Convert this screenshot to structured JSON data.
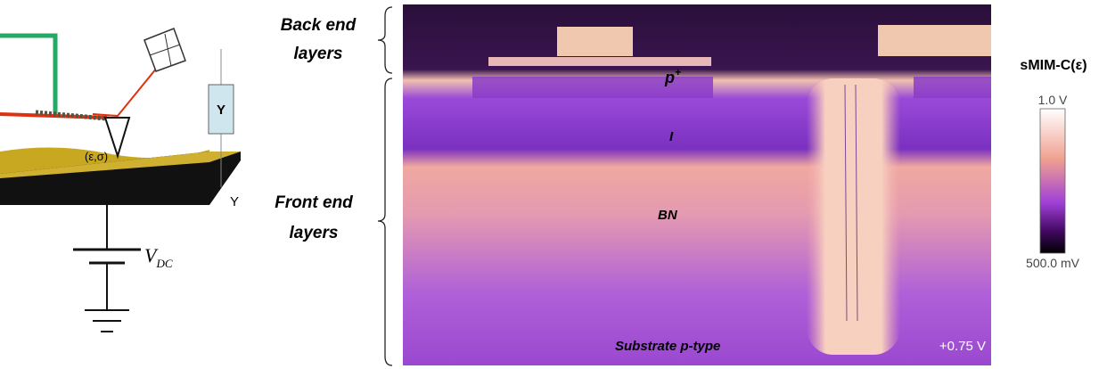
{
  "schematic": {
    "box_label": "Y",
    "axis_label": "Y",
    "sample_label": "(ε,σ)",
    "voltage_base": "V",
    "voltage_sub": "DC"
  },
  "braces": {
    "back_end": "Back end layers",
    "front_end": "Front end layers"
  },
  "image": {
    "layer_p_base": "p",
    "layer_p_sup": "+",
    "layer_i": "I",
    "layer_bn": "BN",
    "substrate": "Substrate p-type",
    "bias": "+0.75 V"
  },
  "colorbar": {
    "title": "sMIM-C(ε)",
    "top_label": "1.0 V",
    "bottom_label": "500.0 mV"
  }
}
